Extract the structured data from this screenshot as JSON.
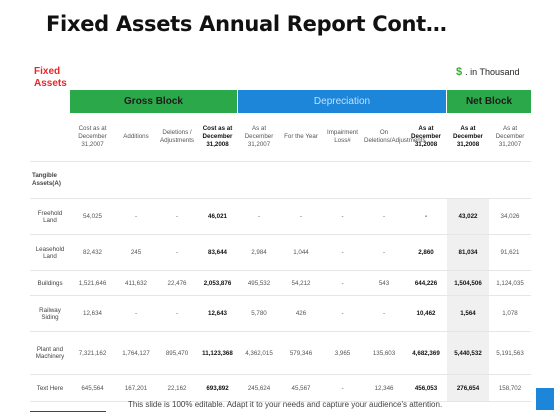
{
  "title": "Fixed Assets Annual Report Cont…",
  "fixed_assets_label_line1": "Fixed",
  "fixed_assets_label_line2": "Assets",
  "unit_symbol": "$",
  "unit_text": ". in Thousand",
  "groups": {
    "gross": "Gross Block",
    "depreciation": "Depreciation",
    "net": "Net Block"
  },
  "columns": [
    "",
    "Cost as at December 31,2007",
    "Additions",
    "Deletions / Adjustments",
    "Cost as at December 31,2008",
    "As at December 31,2007",
    "For the Year",
    "Impairment Loss#",
    "On Deletions/Adjustments",
    "As at December 31,2008",
    "As at December 31,2008",
    "As at December 31,2007"
  ],
  "section_label": "Tangible Assets(A)",
  "rows": [
    {
      "label": "Freehold Land",
      "cells": [
        "54,025",
        "-",
        "-",
        "46,021",
        "-",
        "-",
        "-",
        "-",
        "-",
        "43,022",
        "34,026"
      ]
    },
    {
      "label": "Leasehold Land",
      "cells": [
        "82,432",
        "245",
        "-",
        "83,644",
        "2,984",
        "1,044",
        "-",
        "-",
        "2,860",
        "81,034",
        "91,621"
      ]
    },
    {
      "label": "Buildings",
      "cells": [
        "1,521,646",
        "411,632",
        "22,476",
        "2,053,876",
        "495,532",
        "54,212",
        "-",
        "543",
        "644,226",
        "1,504,506",
        "1,124,035"
      ]
    },
    {
      "label": "Railway Siding",
      "cells": [
        "12,634",
        "-",
        "-",
        "12,643",
        "5,780",
        "426",
        "-",
        "-",
        "10,462",
        "1,564",
        "1,078"
      ]
    },
    {
      "label": "Plant and Machinery",
      "cells": [
        "7,321,162",
        "1,764,127",
        "895,470",
        "11,123,368",
        "4,362,015",
        "579,346",
        "3,965",
        "135,603",
        "4,682,369",
        "5,440,532",
        "5,191,563"
      ]
    },
    {
      "label": "Text Here",
      "cells": [
        "645,564",
        "167,201",
        "22,162",
        "693,892",
        "245,624",
        "45,567",
        "-",
        "12,346",
        "456,053",
        "276,654",
        "158,702"
      ]
    }
  ],
  "footer": "This slide is 100% editable. Adapt it to your needs and capture your audience's attention.",
  "colors": {
    "green": "#2ba84a",
    "blue": "#1d86d8",
    "red": "#e8262a"
  }
}
